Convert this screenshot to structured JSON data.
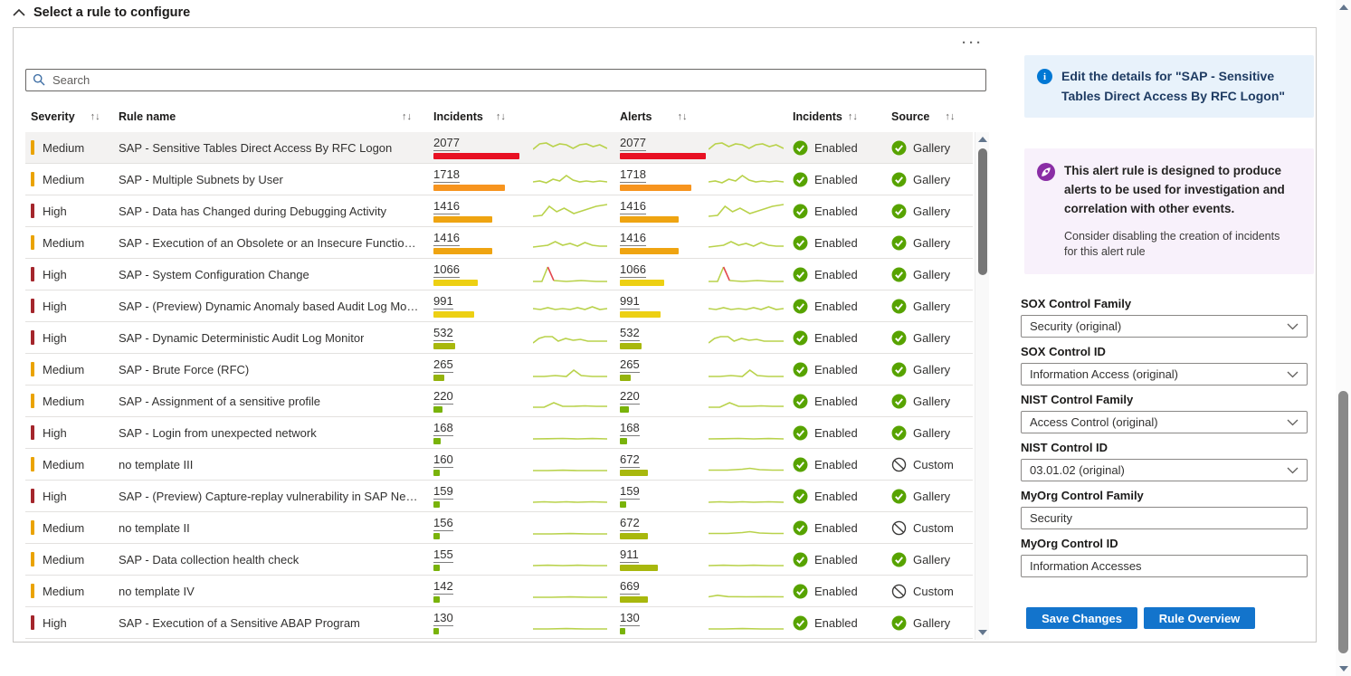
{
  "page": {
    "title": "Select a rule to configure",
    "ellipsis": "···"
  },
  "search": {
    "placeholder": "Search"
  },
  "table": {
    "sort_glyph": "↑↓",
    "columns": [
      {
        "label": "Severity"
      },
      {
        "label": "Rule name"
      },
      {
        "label": "Incidents"
      },
      {
        "label": "Alerts"
      },
      {
        "label": "Incidents"
      },
      {
        "label": "Source"
      }
    ],
    "rows": [
      {
        "severity": "Medium",
        "severity_color": "#eaa300",
        "rule_name": "SAP - Sensitive Tables Direct Access By RFC Logon",
        "incidents": "2077",
        "inc_bar_w": 95,
        "inc_bar_color": "#e81123",
        "alerts": "2077",
        "al_bar_w": 95,
        "al_bar_color": "#e81123",
        "spark1": [
          {
            "c": "#b9d24b",
            "p": "0,13 9,7 18,6 27,10 36,7 45,8 54,12 63,8 72,7 81,10 90,8 100,12"
          }
        ],
        "spark2": [
          {
            "c": "#b9d24b",
            "p": "0,13 9,7 18,6 27,10 36,7 45,8 54,12 63,8 72,7 81,10 90,8 100,12"
          }
        ],
        "status": "Enabled",
        "source": "Gallery",
        "selected": true
      },
      {
        "severity": "Medium",
        "severity_color": "#eaa300",
        "rule_name": "SAP - Multiple Subnets by User",
        "incidents": "1718",
        "inc_bar_w": 79,
        "inc_bar_color": "#f7941e",
        "alerts": "1718",
        "al_bar_w": 79,
        "al_bar_color": "#f7941e",
        "spark1": [
          {
            "c": "#b9d24b",
            "p": "0,14 9,13 18,15 27,11 36,13 45,7 54,12 63,14 72,13 81,14 90,13 100,14"
          }
        ],
        "spark2": [
          {
            "c": "#b9d24b",
            "p": "0,14 9,13 18,15 27,11 36,13 45,7 54,12 63,14 72,13 81,14 90,13 100,14"
          }
        ],
        "status": "Enabled",
        "source": "Gallery",
        "selected": false
      },
      {
        "severity": "High",
        "severity_color": "#a4262c",
        "rule_name": "SAP - Data has Changed during Debugging Activity",
        "incidents": "1416",
        "inc_bar_w": 65,
        "inc_bar_color": "#efa411",
        "alerts": "1416",
        "al_bar_w": 65,
        "al_bar_color": "#efa411",
        "spark1": [
          {
            "c": "#b9d24b",
            "p": "0,17 12,16 22,6 32,12 42,8 55,14 70,10 85,6 100,4"
          }
        ],
        "spark2": [
          {
            "c": "#b9d24b",
            "p": "0,17 12,16 22,6 32,12 42,8 55,14 70,10 85,6 100,4"
          }
        ],
        "status": "Enabled",
        "source": "Gallery",
        "selected": false
      },
      {
        "severity": "Medium",
        "severity_color": "#eaa300",
        "rule_name": "SAP - Execution of an Obsolete or an Insecure Function ...",
        "incidents": "1416",
        "inc_bar_w": 65,
        "inc_bar_color": "#efa411",
        "alerts": "1416",
        "al_bar_w": 65,
        "al_bar_color": "#efa411",
        "spark1": [
          {
            "c": "#b9d24b",
            "p": "0,16 10,15 20,14 30,10 40,14 50,12 60,15 70,11 80,14 90,15 100,15"
          }
        ],
        "spark2": [
          {
            "c": "#b9d24b",
            "p": "0,16 10,15 20,14 30,10 40,14 50,12 60,15 70,11 80,14 90,15 100,15"
          }
        ],
        "status": "Enabled",
        "source": "Gallery",
        "selected": false
      },
      {
        "severity": "High",
        "severity_color": "#a4262c",
        "rule_name": "SAP - System Configuration Change",
        "incidents": "1066",
        "inc_bar_w": 49,
        "inc_bar_color": "#edd013",
        "alerts": "1066",
        "al_bar_w": 49,
        "al_bar_color": "#edd013",
        "spark1": [
          {
            "c": "#b9d24b",
            "p": "0,19 12,19 20,3"
          },
          {
            "c": "#e34850",
            "p": "20,3 28,18"
          },
          {
            "c": "#b9d24b",
            "p": "28,18 45,19 65,18 85,19 100,19"
          }
        ],
        "spark2": [
          {
            "c": "#b9d24b",
            "p": "0,19 12,19 20,3"
          },
          {
            "c": "#e34850",
            "p": "20,3 28,18"
          },
          {
            "c": "#b9d24b",
            "p": "28,18 45,19 65,18 85,19 100,19"
          }
        ],
        "status": "Enabled",
        "source": "Gallery",
        "selected": false
      },
      {
        "severity": "High",
        "severity_color": "#a4262c",
        "rule_name": "SAP - (Preview) Dynamic Anomaly based Audit Log Monit...",
        "incidents": "991",
        "inc_bar_w": 45,
        "inc_bar_color": "#edd013",
        "alerts": "991",
        "al_bar_w": 45,
        "al_bar_color": "#edd013",
        "spark1": [
          {
            "c": "#b9d24b",
            "p": "0,14 10,15 20,13 30,15 40,14 50,15 60,13 70,15 80,12 90,15 100,14"
          }
        ],
        "spark2": [
          {
            "c": "#b9d24b",
            "p": "0,14 10,15 20,13 30,15 40,14 50,15 60,13 70,15 80,12 90,15 100,14"
          }
        ],
        "status": "Enabled",
        "source": "Gallery",
        "selected": false
      },
      {
        "severity": "High",
        "severity_color": "#a4262c",
        "rule_name": "SAP - Dynamic Deterministic Audit Log Monitor",
        "incidents": "532",
        "inc_bar_w": 24,
        "inc_bar_color": "#a8b80d",
        "alerts": "532",
        "al_bar_w": 24,
        "al_bar_color": "#a8b80d",
        "spark1": [
          {
            "c": "#b9d24b",
            "p": "0,17 8,12 16,10 26,10 34,15 44,12 54,14 64,13 74,15 87,15 100,15"
          }
        ],
        "spark2": [
          {
            "c": "#b9d24b",
            "p": "0,17 8,12 16,10 26,10 34,15 44,12 54,14 64,13 74,15 87,15 100,15"
          }
        ],
        "status": "Enabled",
        "source": "Gallery",
        "selected": false
      },
      {
        "severity": "Medium",
        "severity_color": "#eaa300",
        "rule_name": "SAP - Brute Force (RFC)",
        "incidents": "265",
        "inc_bar_w": 12,
        "inc_bar_color": "#94b30c",
        "alerts": "265",
        "al_bar_w": 12,
        "al_bar_color": "#94b30c",
        "spark1": [
          {
            "c": "#b9d24b",
            "p": "0,19 15,19 30,18 45,19 55,12 65,18 80,19 100,19"
          }
        ],
        "spark2": [
          {
            "c": "#b9d24b",
            "p": "0,19 15,19 30,18 45,19 55,12 65,18 80,19 100,19"
          }
        ],
        "status": "Enabled",
        "source": "Gallery",
        "selected": false
      },
      {
        "severity": "Medium",
        "severity_color": "#eaa300",
        "rule_name": "SAP - Assignment of a sensitive profile",
        "incidents": "220",
        "inc_bar_w": 10,
        "inc_bar_color": "#79b30a",
        "alerts": "220",
        "al_bar_w": 10,
        "al_bar_color": "#79b30a",
        "spark1": [
          {
            "c": "#b9d24b",
            "p": "0,18 15,18 28,13 40,17 55,17 70,16.5 85,17 100,17"
          }
        ],
        "spark2": [
          {
            "c": "#b9d24b",
            "p": "0,18 15,18 28,13 40,17 55,17 70,16.5 85,17 100,17"
          }
        ],
        "status": "Enabled",
        "source": "Gallery",
        "selected": false
      },
      {
        "severity": "High",
        "severity_color": "#a4262c",
        "rule_name": "SAP - Login from unexpected network",
        "incidents": "168",
        "inc_bar_w": 8,
        "inc_bar_color": "#79b30a",
        "alerts": "168",
        "al_bar_w": 8,
        "al_bar_color": "#79b30a",
        "spark1": [
          {
            "c": "#b9d24b",
            "p": "0,18 20,17.8 40,17.5 60,18 80,17.6 100,18"
          }
        ],
        "spark2": [
          {
            "c": "#b9d24b",
            "p": "0,18 20,17.8 40,17.5 60,18 80,17.6 100,18"
          }
        ],
        "status": "Enabled",
        "source": "Gallery",
        "selected": false
      },
      {
        "severity": "Medium",
        "severity_color": "#eaa300",
        "rule_name": "no template III",
        "incidents": "160",
        "inc_bar_w": 7,
        "inc_bar_color": "#79b30a",
        "alerts": "672",
        "al_bar_w": 31,
        "al_bar_color": "#a8b80d",
        "spark1": [
          {
            "c": "#b9d24b",
            "p": "0,18 20,18 40,17.6 60,18 80,18 100,18"
          }
        ],
        "spark2": [
          {
            "c": "#b9d24b",
            "p": "0,17.5 25,17.5 45,16.5 55,15.5 68,17 85,17.5 100,17.5"
          }
        ],
        "status": "Enabled",
        "source": "Custom",
        "selected": false
      },
      {
        "severity": "High",
        "severity_color": "#a4262c",
        "rule_name": "SAP - (Preview) Capture-replay vulnerability in SAP NetW...",
        "incidents": "159",
        "inc_bar_w": 7,
        "inc_bar_color": "#79b30a",
        "alerts": "159",
        "al_bar_w": 7,
        "al_bar_color": "#79b30a",
        "spark1": [
          {
            "c": "#b9d24b",
            "p": "0,18 15,17.5 30,18 45,17.5 60,18 80,17.5 100,18"
          }
        ],
        "spark2": [
          {
            "c": "#b9d24b",
            "p": "0,18 15,17.5 30,18 45,17.5 60,18 80,17.5 100,18"
          }
        ],
        "status": "Enabled",
        "source": "Gallery",
        "selected": false
      },
      {
        "severity": "Medium",
        "severity_color": "#eaa300",
        "rule_name": "no template II",
        "incidents": "156",
        "inc_bar_w": 7,
        "inc_bar_color": "#79b30a",
        "alerts": "672",
        "al_bar_w": 31,
        "al_bar_color": "#a8b80d",
        "spark1": [
          {
            "c": "#b9d24b",
            "p": "0,18 25,18 50,17.6 75,18 100,18"
          }
        ],
        "spark2": [
          {
            "c": "#b9d24b",
            "p": "0,17.5 25,17.5 45,16.5 55,15.5 68,17 85,17.5 100,17.5"
          }
        ],
        "status": "Enabled",
        "source": "Custom",
        "selected": false
      },
      {
        "severity": "Medium",
        "severity_color": "#eaa300",
        "rule_name": "SAP - Data collection health check",
        "incidents": "155",
        "inc_bar_w": 7,
        "inc_bar_color": "#79b30a",
        "alerts": "911",
        "al_bar_w": 42,
        "al_bar_color": "#a8b80d",
        "spark1": [
          {
            "c": "#b9d24b",
            "p": "0,18 20,17.6 40,18 60,17.6 80,18 100,18"
          }
        ],
        "spark2": [
          {
            "c": "#b9d24b",
            "p": "0,18 20,17.6 40,18 60,17.6 80,18 100,18"
          }
        ],
        "status": "Enabled",
        "source": "Gallery",
        "selected": false
      },
      {
        "severity": "Medium",
        "severity_color": "#eaa300",
        "rule_name": "no template IV",
        "incidents": "142",
        "inc_bar_w": 7,
        "inc_bar_color": "#79b30a",
        "alerts": "669",
        "al_bar_w": 31,
        "al_bar_color": "#a8b80d",
        "spark1": [
          {
            "c": "#b9d24b",
            "p": "0,18 25,18 50,17.6 75,18 100,18"
          }
        ],
        "spark2": [
          {
            "c": "#b9d24b",
            "p": "0,17.5 12,15.8 26,17.3 50,17.5 75,17.4 100,17.5"
          }
        ],
        "status": "Enabled",
        "source": "Custom",
        "selected": false
      },
      {
        "severity": "High",
        "severity_color": "#a4262c",
        "rule_name": "SAP - Execution of a Sensitive ABAP Program",
        "incidents": "130",
        "inc_bar_w": 6,
        "inc_bar_color": "#79b30a",
        "alerts": "130",
        "al_bar_w": 6,
        "al_bar_color": "#79b30a",
        "spark1": [
          {
            "c": "#b9d24b",
            "p": "0,18 20,18 45,17.6 70,18 100,18"
          }
        ],
        "spark2": [
          {
            "c": "#b9d24b",
            "p": "0,18 20,18 45,17.6 70,18 100,18"
          }
        ],
        "status": "Enabled",
        "source": "Gallery",
        "selected": false
      }
    ]
  },
  "panel": {
    "info_box": {
      "text": "Edit the details for \"SAP - Sensitive Tables Direct Access By RFC Logon\""
    },
    "tip_box": {
      "title": "This alert rule is designed to produce alerts to be used for investigation and correlation with other events.",
      "subtitle": "Consider disabling the creation of incidents for this alert rule"
    },
    "fields": [
      {
        "label": "SOX Control Family",
        "value": "Security (original)",
        "type": "select"
      },
      {
        "label": "SOX Control ID",
        "value": "Information Access (original)",
        "type": "select"
      },
      {
        "label": "NIST Control Family",
        "value": "Access Control (original)",
        "type": "select"
      },
      {
        "label": "NIST Control ID",
        "value": "03.01.02 (original)",
        "type": "select"
      },
      {
        "label": "MyOrg Control Family",
        "value": "Security",
        "type": "text"
      },
      {
        "label": "MyOrg Control ID",
        "value": "Information Accesses",
        "type": "text"
      }
    ],
    "buttons": {
      "save": "Save Changes",
      "overview": "Rule Overview"
    }
  },
  "colors": {
    "accent_blue": "#1374cc",
    "info_icon": "#0078d4",
    "tip_purple": "#8a2da5",
    "enabled_green": "#57a300",
    "selected_row": "#f3f2f1"
  }
}
